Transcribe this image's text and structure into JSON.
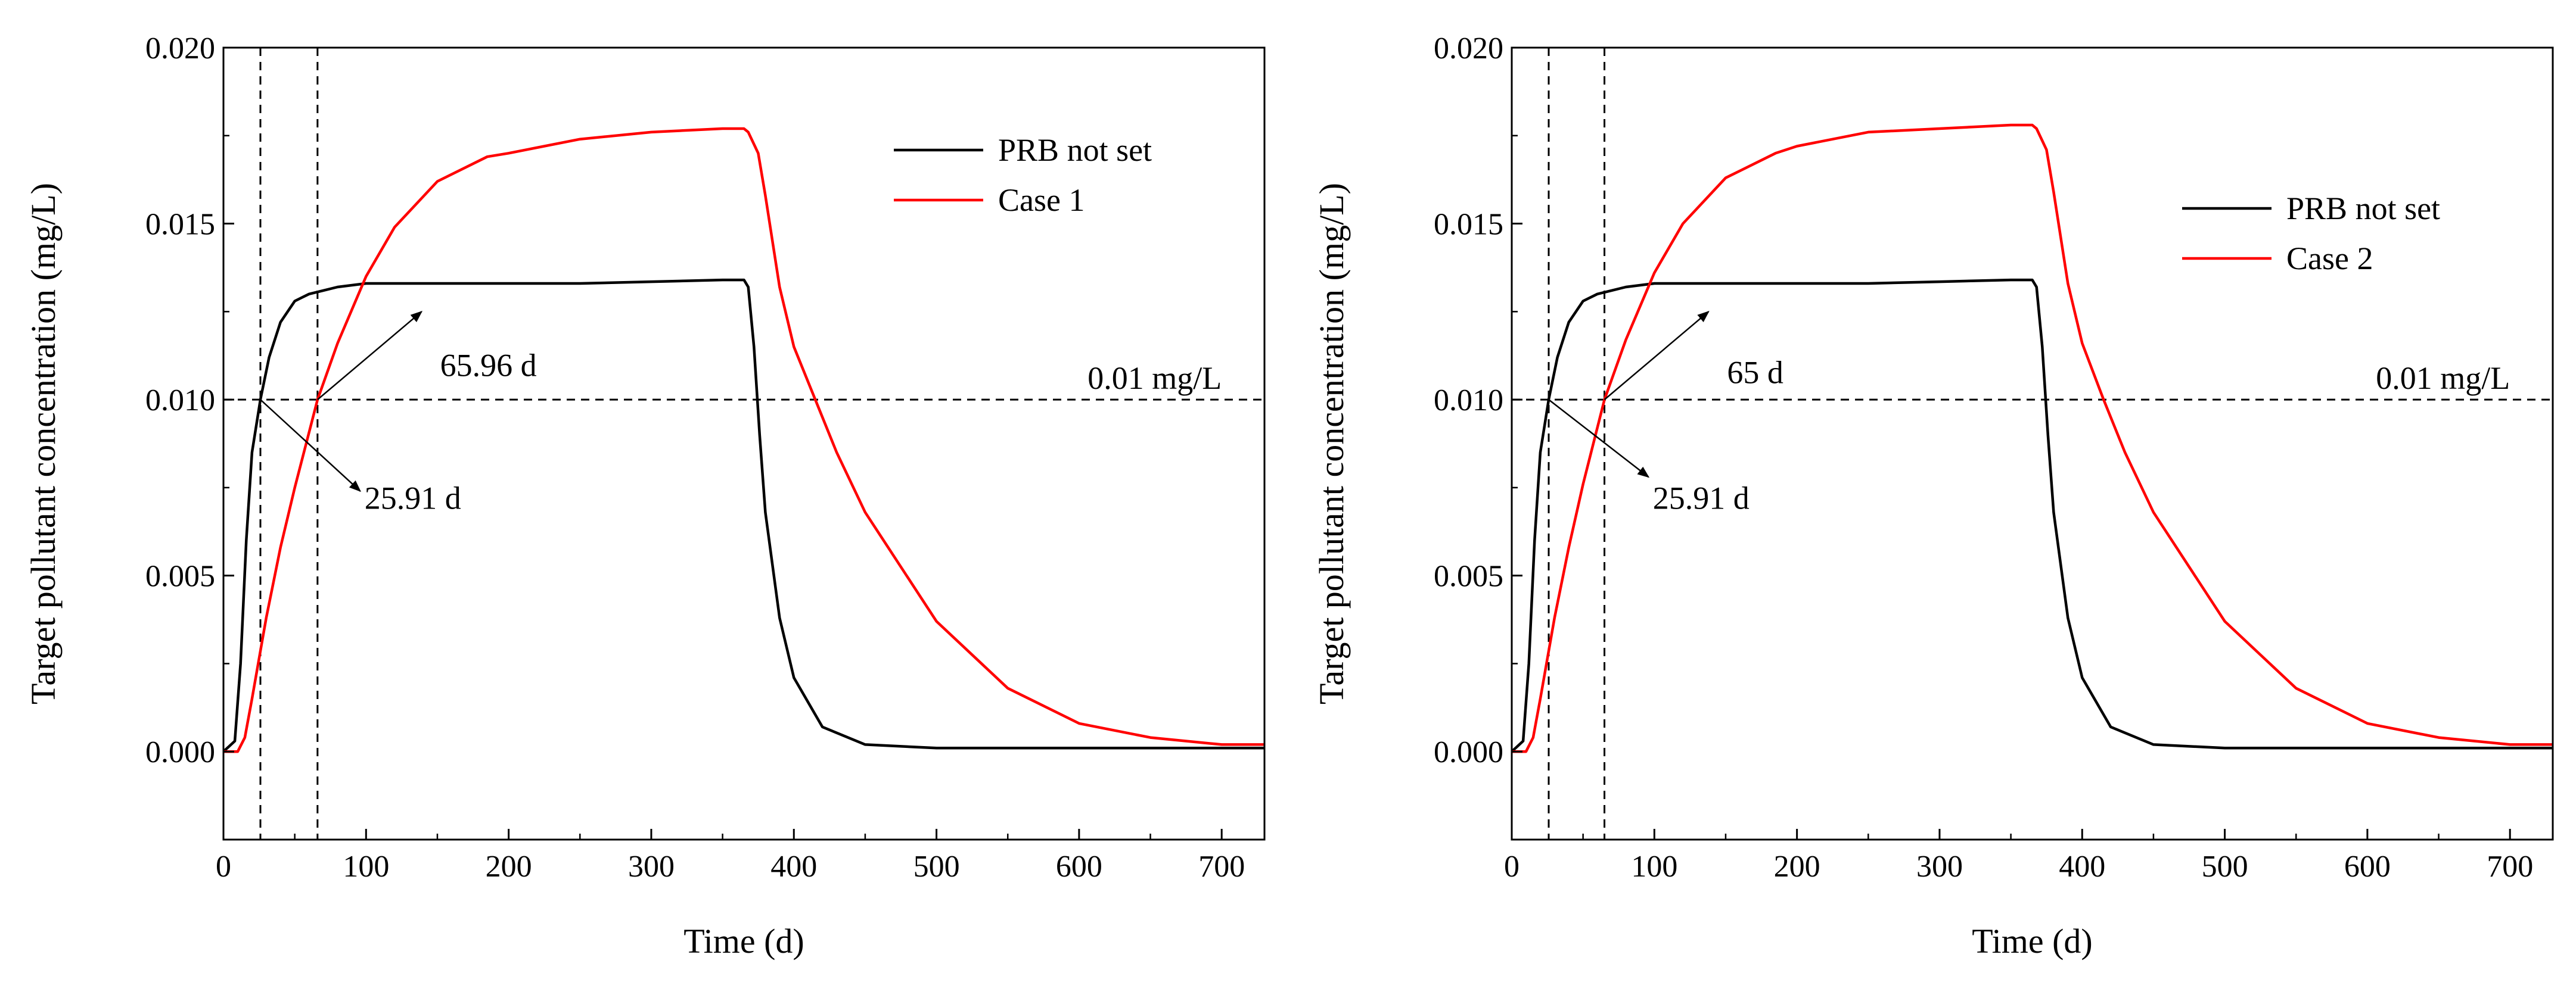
{
  "chart_data": [
    {
      "type": "line",
      "xlabel": "Time (d)",
      "ylabel": "Target pollutant concentration (mg/L)",
      "xlim": [
        0,
        730
      ],
      "ylim": [
        -0.0025,
        0.02
      ],
      "xticks": [
        0,
        100,
        200,
        300,
        400,
        500,
        600,
        700
      ],
      "yticks": [
        0.0,
        0.005,
        0.01,
        0.015,
        0.02
      ],
      "ytick_labels": [
        "0.000",
        "0.005",
        "0.010",
        "0.015",
        "0.020"
      ],
      "grid": false,
      "legend_position": "top-right",
      "series": [
        {
          "name": "PRB not set",
          "color": "#000000",
          "x": [
            0,
            8,
            12,
            16,
            20,
            25.91,
            32,
            40,
            50,
            60,
            70,
            80,
            100,
            150,
            200,
            250,
            300,
            350,
            365,
            368,
            372,
            376,
            380,
            390,
            400,
            420,
            450,
            500,
            550,
            600,
            650,
            700,
            730
          ],
          "y": [
            0,
            0.0003,
            0.0025,
            0.006,
            0.0085,
            0.01,
            0.0112,
            0.0122,
            0.0128,
            0.013,
            0.0131,
            0.0132,
            0.0133,
            0.0133,
            0.0133,
            0.0133,
            0.01335,
            0.0134,
            0.0134,
            0.0132,
            0.0115,
            0.009,
            0.0068,
            0.0038,
            0.0021,
            0.0007,
            0.0002,
            0.0001,
            0.0001,
            0.0001,
            0.0001,
            0.0001,
            0.0001
          ]
        },
        {
          "name": "Case 1",
          "color": "#ff0000",
          "x": [
            0,
            10,
            15,
            20,
            30,
            40,
            50,
            65.96,
            80,
            100,
            120,
            150,
            185,
            200,
            250,
            300,
            350,
            365,
            368,
            375,
            380,
            390,
            400,
            415,
            430,
            450,
            500,
            550,
            600,
            650,
            700,
            730
          ],
          "y": [
            0,
            0,
            0.0004,
            0.0015,
            0.0038,
            0.0058,
            0.0075,
            0.01,
            0.0116,
            0.0135,
            0.0149,
            0.0162,
            0.0169,
            0.017,
            0.0174,
            0.0176,
            0.0177,
            0.0177,
            0.0176,
            0.017,
            0.0158,
            0.0132,
            0.0115,
            0.01,
            0.0085,
            0.0068,
            0.0037,
            0.0018,
            0.0008,
            0.0004,
            0.0002,
            0.0002
          ]
        }
      ],
      "reference_line": {
        "y": 0.01,
        "label": "0.01 mg/L"
      },
      "vertical_lines": [
        25.91,
        65.96
      ],
      "annotations": [
        {
          "text": "65.96 d",
          "x": 65.96,
          "y": 0.01
        },
        {
          "text": "25.91 d",
          "x": 25.91,
          "y": 0.01
        }
      ]
    },
    {
      "type": "line",
      "xlabel": "Time (d)",
      "ylabel": "Target pollutant concentration (mg/L)",
      "xlim": [
        0,
        730
      ],
      "ylim": [
        -0.0025,
        0.02
      ],
      "xticks": [
        0,
        100,
        200,
        300,
        400,
        500,
        600,
        700
      ],
      "yticks": [
        0.0,
        0.005,
        0.01,
        0.015,
        0.02
      ],
      "ytick_labels": [
        "0.000",
        "0.005",
        "0.010",
        "0.015",
        "0.020"
      ],
      "grid": false,
      "legend_position": "top-right",
      "series": [
        {
          "name": "PRB not set",
          "color": "#000000",
          "x": [
            0,
            8,
            12,
            16,
            20,
            25.91,
            32,
            40,
            50,
            60,
            70,
            80,
            100,
            150,
            200,
            250,
            300,
            350,
            365,
            368,
            372,
            376,
            380,
            390,
            400,
            420,
            450,
            500,
            550,
            600,
            650,
            700,
            730
          ],
          "y": [
            0,
            0.0003,
            0.0025,
            0.006,
            0.0085,
            0.01,
            0.0112,
            0.0122,
            0.0128,
            0.013,
            0.0131,
            0.0132,
            0.0133,
            0.0133,
            0.0133,
            0.0133,
            0.01335,
            0.0134,
            0.0134,
            0.0132,
            0.0115,
            0.009,
            0.0068,
            0.0038,
            0.0021,
            0.0007,
            0.0002,
            0.0001,
            0.0001,
            0.0001,
            0.0001,
            0.0001,
            0.0001
          ]
        },
        {
          "name": "Case 2",
          "color": "#ff0000",
          "x": [
            0,
            10,
            15,
            20,
            30,
            40,
            50,
            65,
            80,
            100,
            120,
            150,
            185,
            200,
            250,
            300,
            350,
            365,
            368,
            375,
            380,
            390,
            400,
            415,
            430,
            450,
            500,
            550,
            600,
            650,
            700,
            730
          ],
          "y": [
            0,
            0,
            0.0004,
            0.0015,
            0.0038,
            0.0058,
            0.0076,
            0.01,
            0.0117,
            0.0136,
            0.015,
            0.0163,
            0.017,
            0.0172,
            0.0176,
            0.0177,
            0.0178,
            0.0178,
            0.0177,
            0.0171,
            0.0159,
            0.0133,
            0.0116,
            0.01,
            0.0085,
            0.0068,
            0.0037,
            0.0018,
            0.0008,
            0.0004,
            0.0002,
            0.0002
          ]
        }
      ],
      "reference_line": {
        "y": 0.01,
        "label": "0.01 mg/L"
      },
      "vertical_lines": [
        25.91,
        65
      ],
      "annotations": [
        {
          "text": "65 d",
          "x": 65,
          "y": 0.01
        },
        {
          "text": "25.91 d",
          "x": 25.91,
          "y": 0.01
        }
      ]
    }
  ]
}
